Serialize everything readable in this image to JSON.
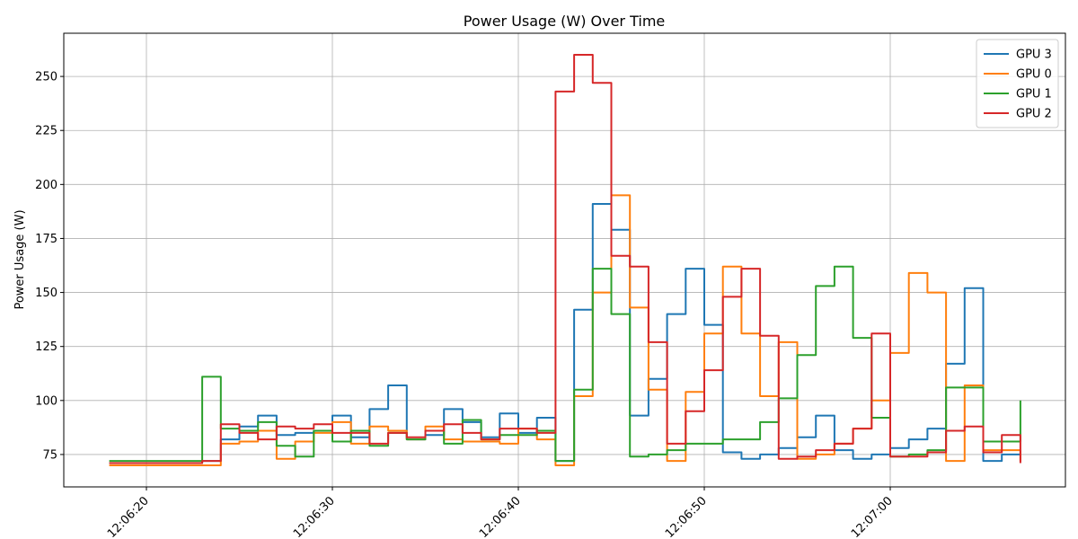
{
  "chart_data": {
    "type": "line",
    "title": "Power Usage (W) Over Time",
    "xlabel": "",
    "ylabel": "Power Usage (W)",
    "x": [
      "12:06:18",
      "12:06:19",
      "12:06:20",
      "12:06:21",
      "12:06:22",
      "12:06:23",
      "12:06:24",
      "12:06:25",
      "12:06:26",
      "12:06:27",
      "12:06:28",
      "12:06:29",
      "12:06:30",
      "12:06:31",
      "12:06:32",
      "12:06:33",
      "12:06:34",
      "12:06:35",
      "12:06:36",
      "12:06:37",
      "12:06:38",
      "12:06:39",
      "12:06:40",
      "12:06:41",
      "12:06:42",
      "12:06:43",
      "12:06:44",
      "12:06:45",
      "12:06:46",
      "12:06:47",
      "12:06:48",
      "12:06:49",
      "12:06:50",
      "12:06:51",
      "12:06:52",
      "12:06:53",
      "12:06:54",
      "12:06:55",
      "12:06:56",
      "12:06:57",
      "12:06:58",
      "12:06:59",
      "12:07:00",
      "12:07:01",
      "12:07:02",
      "12:07:03",
      "12:07:04",
      "12:07:05",
      "12:07:06",
      "12:07:07"
    ],
    "x_ticks": [
      "12:06:20",
      "12:06:30",
      "12:06:40",
      "12:06:50",
      "12:07:00"
    ],
    "ylim": [
      60,
      270
    ],
    "y_ticks": [
      75,
      100,
      125,
      150,
      175,
      200,
      225,
      250
    ],
    "grid": true,
    "legend_position": "top-right",
    "series": [
      {
        "name": "GPU 3",
        "color": "#1f77b4",
        "values": [
          71,
          71,
          71,
          71,
          71,
          72,
          82,
          88,
          93,
          84,
          85,
          86,
          93,
          83,
          96,
          107,
          82,
          84,
          96,
          90,
          83,
          94,
          85,
          92,
          72,
          142,
          191,
          179,
          93,
          110,
          140,
          161,
          135,
          76,
          73,
          75,
          78,
          83,
          93,
          77,
          73,
          75,
          78,
          82,
          87,
          117,
          152,
          72,
          75,
          75
        ]
      },
      {
        "name": "GPU 0",
        "color": "#ff7f0e",
        "values": [
          70,
          70,
          70,
          70,
          70,
          70,
          80,
          81,
          86,
          73,
          81,
          85,
          90,
          80,
          88,
          86,
          82,
          88,
          82,
          81,
          81,
          80,
          87,
          82,
          70,
          102,
          150,
          195,
          143,
          105,
          72,
          104,
          131,
          162,
          131,
          102,
          127,
          73,
          75,
          80,
          87,
          100,
          122,
          159,
          150,
          72,
          107,
          77,
          77,
          72
        ]
      },
      {
        "name": "GPU 1",
        "color": "#2ca02c",
        "values": [
          72,
          72,
          72,
          72,
          72,
          111,
          87,
          86,
          90,
          79,
          74,
          86,
          81,
          86,
          79,
          85,
          82,
          86,
          80,
          91,
          82,
          84,
          84,
          86,
          72,
          105,
          161,
          140,
          74,
          75,
          77,
          80,
          80,
          82,
          82,
          90,
          101,
          121,
          153,
          162,
          129,
          92,
          74,
          75,
          77,
          106,
          106,
          81,
          81,
          100
        ]
      },
      {
        "name": "GPU 2",
        "color": "#d62728",
        "values": [
          71,
          71,
          71,
          71,
          71,
          72,
          89,
          85,
          82,
          88,
          87,
          89,
          85,
          85,
          80,
          85,
          83,
          86,
          89,
          85,
          82,
          87,
          87,
          85,
          243,
          260,
          247,
          167,
          162,
          127,
          80,
          95,
          114,
          148,
          161,
          130,
          73,
          74,
          77,
          80,
          87,
          131,
          74,
          74,
          76,
          86,
          88,
          76,
          84,
          71
        ]
      }
    ]
  }
}
